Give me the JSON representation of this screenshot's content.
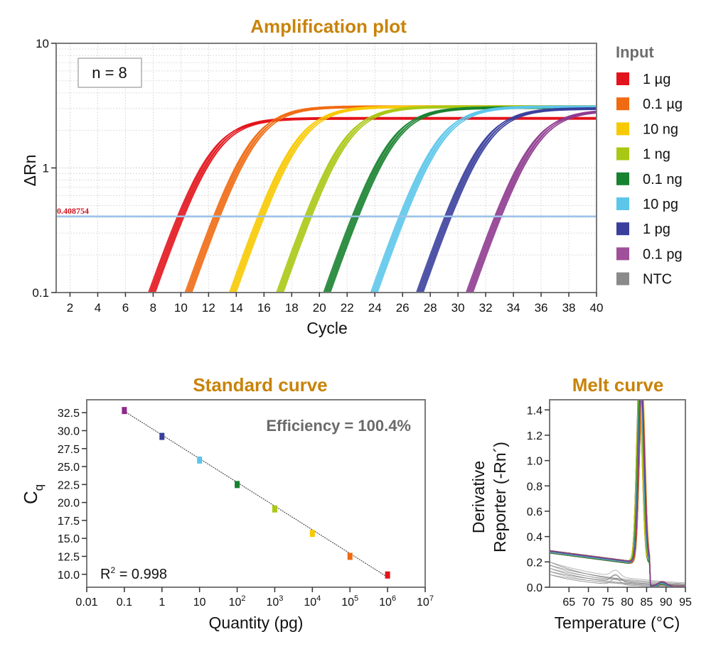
{
  "chart_data": [
    {
      "id": "amplification",
      "type": "line",
      "title": "Amplification plot",
      "xlabel": "Cycle",
      "ylabel": "ΔRn",
      "xlim": [
        1,
        40
      ],
      "ylim": [
        0.1,
        10
      ],
      "yscale": "log",
      "grid": true,
      "x_ticks": [
        2,
        4,
        6,
        8,
        10,
        12,
        14,
        16,
        18,
        20,
        22,
        24,
        26,
        28,
        30,
        32,
        34,
        36,
        38,
        40
      ],
      "y_ticks": [
        {
          "v": 0.1,
          "label": "0.1"
        },
        {
          "v": 1,
          "label": "1"
        },
        {
          "v": 10,
          "label": "10"
        }
      ],
      "annotation": "n = 8",
      "threshold": {
        "value": 0.408754,
        "label": "0.408754",
        "color": "#9cc3ea"
      },
      "replicates": 8,
      "series": [
        {
          "name": "1 µg",
          "color": "#e3131b",
          "ct": 10.0,
          "plateau": 2.5
        },
        {
          "name": "0.1 µg",
          "color": "#f06a12",
          "ct": 12.6,
          "plateau": 3.1
        },
        {
          "name": "10 ng",
          "color": "#f7c900",
          "ct": 15.8,
          "plateau": 3.1
        },
        {
          "name": "1 ng",
          "color": "#a9c813",
          "ct": 19.2,
          "plateau": 3.1
        },
        {
          "name": "0.1 ng",
          "color": "#17822f",
          "ct": 22.6,
          "plateau": 3.05
        },
        {
          "name": "10 pg",
          "color": "#5cc6ea",
          "ct": 26.0,
          "plateau": 3.1
        },
        {
          "name": "1 pg",
          "color": "#3a3f9c",
          "ct": 29.3,
          "plateau": 3.0
        },
        {
          "name": "0.1 pg",
          "color": "#8e3a8e",
          "ct": 32.9,
          "plateau": 2.9
        }
      ],
      "legend": {
        "title": "Input",
        "placement": "right",
        "items": [
          {
            "label": "1 µg",
            "color": "#e3131b"
          },
          {
            "label": "0.1 µg",
            "color": "#f06a12"
          },
          {
            "label": "10 ng",
            "color": "#f7c900"
          },
          {
            "label": "1 ng",
            "color": "#a9c813"
          },
          {
            "label": "0.1 ng",
            "color": "#17822f"
          },
          {
            "label": "10 pg",
            "color": "#5cc6ea"
          },
          {
            "label": "1 pg",
            "color": "#3a3f9c"
          },
          {
            "label": "0.1 pg",
            "color": "#a0509a"
          },
          {
            "label": "NTC",
            "color": "#8a8a8a"
          }
        ]
      }
    },
    {
      "id": "standard",
      "type": "scatter",
      "title": "Standard curve",
      "xlabel": "Quantity (pg)",
      "ylabel": "C",
      "ylabel_sub": "q",
      "xscale": "log",
      "xlim": [
        0.01,
        10000000
      ],
      "ylim": [
        8.2,
        34.3
      ],
      "x_ticks": [
        {
          "v": 0.01,
          "base": "0.01",
          "exp": ""
        },
        {
          "v": 0.1,
          "base": "0.1",
          "exp": ""
        },
        {
          "v": 1,
          "base": "1",
          "exp": ""
        },
        {
          "v": 10,
          "base": "10",
          "exp": ""
        },
        {
          "v": 100,
          "base": "10",
          "exp": "2"
        },
        {
          "v": 1000,
          "base": "10",
          "exp": "3"
        },
        {
          "v": 10000,
          "base": "10",
          "exp": "4"
        },
        {
          "v": 100000,
          "base": "10",
          "exp": "5"
        },
        {
          "v": 1000000,
          "base": "10",
          "exp": "6"
        },
        {
          "v": 10000000,
          "base": "10",
          "exp": "7"
        }
      ],
      "y_ticks": [
        "10.0",
        "12.5",
        "15.0",
        "17.5",
        "20.0",
        "22.5",
        "25.0",
        "27.5",
        "30.0",
        "32.5"
      ],
      "points": [
        {
          "x": 0.1,
          "y": 32.8,
          "color": "#8e2a8a"
        },
        {
          "x": 1,
          "y": 29.2,
          "color": "#3a3f9c"
        },
        {
          "x": 10,
          "y": 25.9,
          "color": "#5cc6ea"
        },
        {
          "x": 100,
          "y": 22.5,
          "color": "#17822f"
        },
        {
          "x": 1000,
          "y": 19.1,
          "color": "#a9c813"
        },
        {
          "x": 10000,
          "y": 15.7,
          "color": "#f7c900"
        },
        {
          "x": 100000,
          "y": 12.5,
          "color": "#f06a12"
        },
        {
          "x": 1000000,
          "y": 9.9,
          "color": "#e3131b"
        }
      ],
      "fit": {
        "x": [
          0.1,
          1000000
        ],
        "y": [
          32.7,
          9.6
        ]
      },
      "efficiency_label": "Efficiency = 100.4%",
      "r2_label": "R",
      "r2_sup": "2",
      "r2_value": " = 0.998"
    },
    {
      "id": "melt",
      "type": "line",
      "title": "Melt curve",
      "xlabel": "Temperature (°C)",
      "ylabel_line1": "Derivative",
      "ylabel_line2": "Reporter (-Rn´)",
      "xlim": [
        60,
        95
      ],
      "ylim": [
        0,
        1.48
      ],
      "x_ticks": [
        65,
        70,
        75,
        80,
        85,
        90,
        95
      ],
      "y_ticks": [
        "0.0",
        "0.2",
        "0.4",
        "0.6",
        "0.8",
        "1.0",
        "1.2",
        "1.4"
      ],
      "peak_temperature": 83.5,
      "peak_height": 1.45,
      "baseline_at_60": 0.28,
      "baseline_at_80": 0.2,
      "ntc_max": 0.2,
      "ntc_bump_temperature": 77
    }
  ]
}
